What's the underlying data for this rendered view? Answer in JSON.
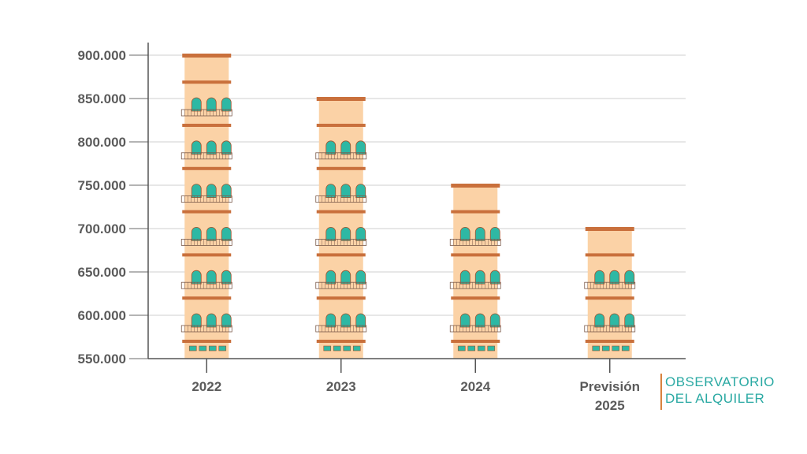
{
  "chart_data": {
    "type": "bar",
    "categories": [
      "2022",
      "2023",
      "2024",
      "Previsión 2025"
    ],
    "values": [
      900000,
      850000,
      750000,
      700000
    ],
    "title": "",
    "xlabel": "",
    "ylabel": "",
    "ylim": [
      550000,
      900000
    ],
    "yticks": [
      "550.000",
      "600.000",
      "650.000",
      "700.000",
      "750.000",
      "800.000",
      "850.000",
      "900.000"
    ],
    "ytick_values": [
      550000,
      600000,
      650000,
      700000,
      750000,
      800000,
      850000,
      900000
    ],
    "grid": true,
    "bar_style": "pictogram-building",
    "colors": {
      "facade": "#fbd2a6",
      "ledge": "#c9703c",
      "window": "#2eb8a4",
      "window_frame": "#a0522d",
      "railing": "#7b5a4a",
      "gridline": "#cfcfcf",
      "axis": "#555555"
    }
  },
  "logo": {
    "line1": "OBSERVATORIO",
    "line2": "DEL ALQUILER"
  }
}
